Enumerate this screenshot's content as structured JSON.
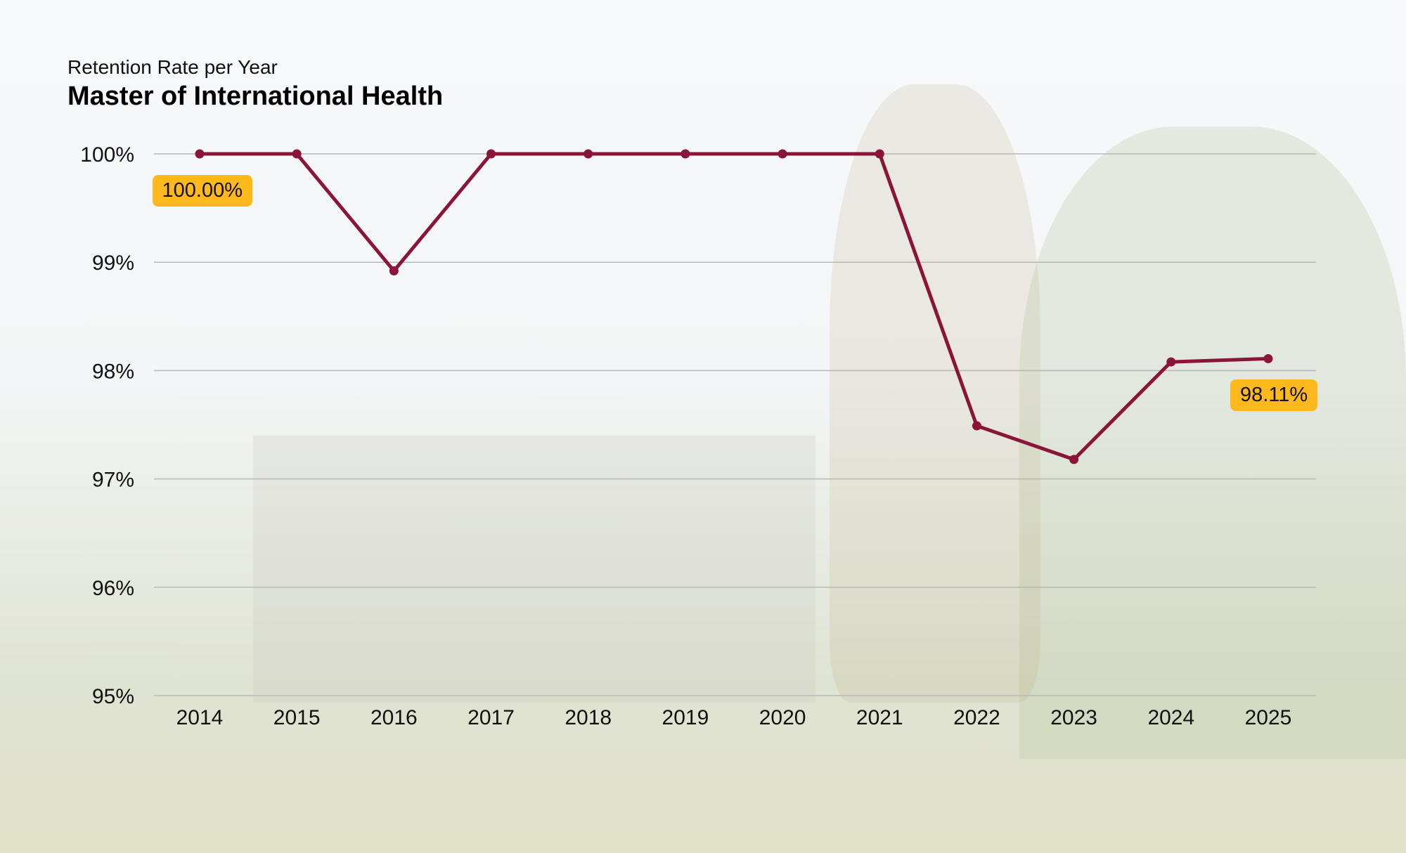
{
  "chart_data": {
    "type": "line",
    "subtitle": "Retention Rate per Year",
    "title": "Master of International Health",
    "categories": [
      "2014",
      "2015",
      "2016",
      "2017",
      "2018",
      "2019",
      "2020",
      "2021",
      "2022",
      "2023",
      "2024",
      "2025"
    ],
    "series": [
      {
        "name": "Retention Rate",
        "values": [
          100,
          100,
          98.92,
          100,
          100,
          100,
          100,
          100,
          97.49,
          97.18,
          98.08,
          98.11
        ],
        "color": "#8a1538"
      }
    ],
    "yticks": [
      "95%",
      "96%",
      "97%",
      "98%",
      "99%",
      "100%"
    ],
    "ylim": [
      95,
      100
    ],
    "grid": true,
    "data_labels": [
      {
        "category": "2014",
        "text": "100.00%"
      },
      {
        "category": "2025",
        "text": "98.11%"
      }
    ],
    "label_color": "#fdb81e"
  }
}
